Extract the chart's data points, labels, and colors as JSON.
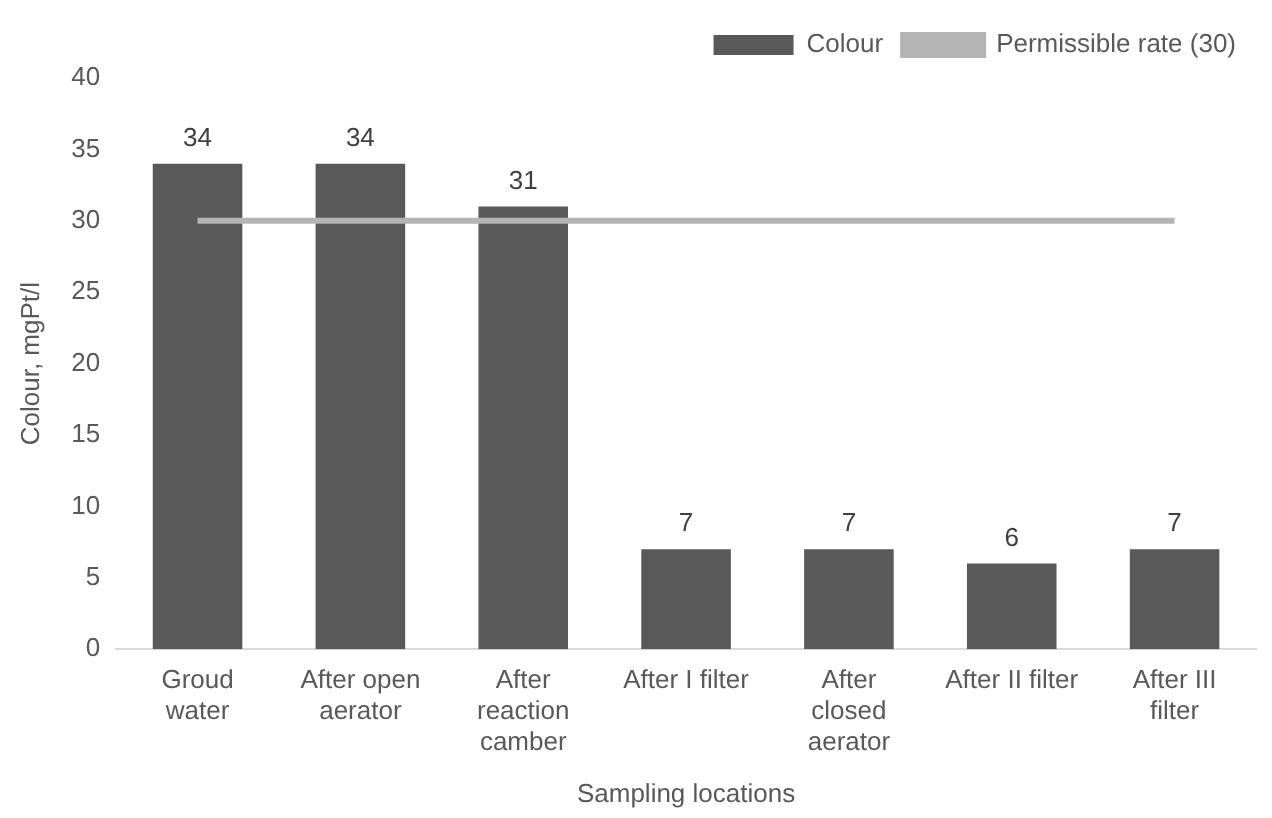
{
  "chart_data": {
    "type": "bar",
    "xlabel": "Sampling locations",
    "ylabel": "Colour, mgPt/l",
    "categories": [
      "Groud water",
      "After open aerator",
      "After reaction camber",
      "After I filter",
      "After closed aerator",
      "After II filter",
      "After III filter"
    ],
    "series": [
      {
        "name": "Colour",
        "color": "#595959",
        "values": [
          34,
          34,
          31,
          7,
          7,
          6,
          7
        ]
      }
    ],
    "ref_lines": [
      {
        "axis": "y",
        "value": 30,
        "label": "Permissible rate (30)",
        "color": "#b4b4b4"
      }
    ],
    "ylim": [
      0,
      40
    ],
    "yticks": [
      0,
      5,
      10,
      15,
      20,
      25,
      30,
      35,
      40
    ],
    "grid": false,
    "legend": "top right",
    "data_labels": true
  }
}
